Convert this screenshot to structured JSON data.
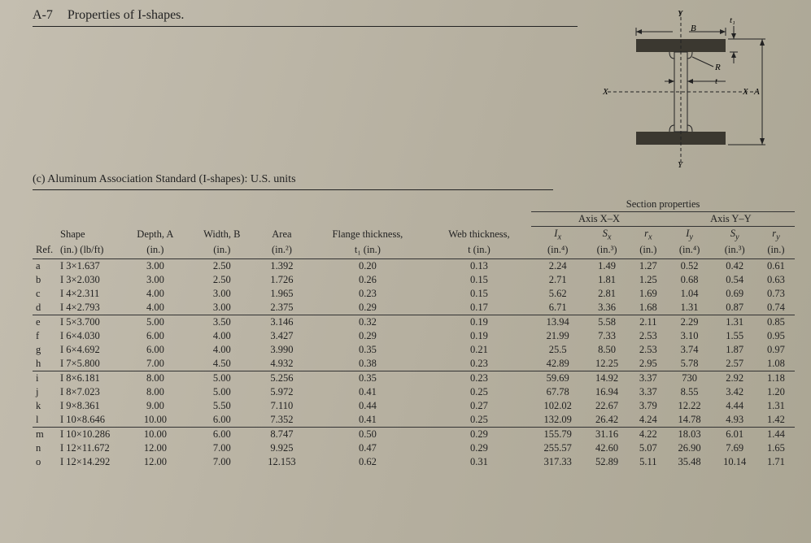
{
  "title": {
    "num": "A-7",
    "text": "Properties of I-shapes."
  },
  "subcaption": "(c) Aluminum Association Standard (I-shapes): U.S. units",
  "diagram": {
    "labels": {
      "Y": "Y",
      "X": "X",
      "A": "A",
      "B": "B",
      "R": "R",
      "t": "t",
      "t1": "t₁"
    },
    "flange_color": "#3b3830",
    "line_color": "#222222"
  },
  "headers": {
    "section_props": "Section properties",
    "axis_xx": "Axis X–X",
    "axis_yy": "Axis Y–Y",
    "ref": "Ref.",
    "shape1": "Shape",
    "shape2": "(in.) (lb/ft)",
    "depth1": "Depth, A",
    "depth2": "(in.)",
    "width1": "Width, B",
    "width2": "(in.)",
    "area1": "Area",
    "area2": "(in.²)",
    "flange1": "Flange thickness,",
    "flange2": "t₁ (in.)",
    "web1": "Web thickness,",
    "web2": "t (in.)",
    "Ix1": "Iₓ",
    "Ix2": "(in.⁴)",
    "Sx1": "Sₓ",
    "Sx2": "(in.³)",
    "rx1": "rₓ",
    "rx2": "(in.)",
    "Iy1": "I_y",
    "Iy2": "(in.⁴)",
    "Sy1": "S_y",
    "Sy2": "(in.³)",
    "ry1": "r_y",
    "ry2": "(in.)"
  },
  "groups": [
    [
      {
        "ref": "a",
        "shape": "I 3×1.637",
        "A": "3.00",
        "B": "2.50",
        "area": "1.392",
        "t1": "0.20",
        "t": "0.13",
        "Ix": "2.24",
        "Sx": "1.49",
        "rx": "1.27",
        "Iy": "0.52",
        "Sy": "0.42",
        "ry": "0.61"
      },
      {
        "ref": "b",
        "shape": "I 3×2.030",
        "A": "3.00",
        "B": "2.50",
        "area": "1.726",
        "t1": "0.26",
        "t": "0.15",
        "Ix": "2.71",
        "Sx": "1.81",
        "rx": "1.25",
        "Iy": "0.68",
        "Sy": "0.54",
        "ry": "0.63"
      },
      {
        "ref": "c",
        "shape": "I 4×2.311",
        "A": "4.00",
        "B": "3.00",
        "area": "1.965",
        "t1": "0.23",
        "t": "0.15",
        "Ix": "5.62",
        "Sx": "2.81",
        "rx": "1.69",
        "Iy": "1.04",
        "Sy": "0.69",
        "ry": "0.73"
      },
      {
        "ref": "d",
        "shape": "I 4×2.793",
        "A": "4.00",
        "B": "3.00",
        "area": "2.375",
        "t1": "0.29",
        "t": "0.17",
        "Ix": "6.71",
        "Sx": "3.36",
        "rx": "1.68",
        "Iy": "1.31",
        "Sy": "0.87",
        "ry": "0.74"
      }
    ],
    [
      {
        "ref": "e",
        "shape": "I 5×3.700",
        "A": "5.00",
        "B": "3.50",
        "area": "3.146",
        "t1": "0.32",
        "t": "0.19",
        "Ix": "13.94",
        "Sx": "5.58",
        "rx": "2.11",
        "Iy": "2.29",
        "Sy": "1.31",
        "ry": "0.85"
      },
      {
        "ref": "f",
        "shape": "I 6×4.030",
        "A": "6.00",
        "B": "4.00",
        "area": "3.427",
        "t1": "0.29",
        "t": "0.19",
        "Ix": "21.99",
        "Sx": "7.33",
        "rx": "2.53",
        "Iy": "3.10",
        "Sy": "1.55",
        "ry": "0.95"
      },
      {
        "ref": "g",
        "shape": "I 6×4.692",
        "A": "6.00",
        "B": "4.00",
        "area": "3.990",
        "t1": "0.35",
        "t": "0.21",
        "Ix": "25.5",
        "Sx": "8.50",
        "rx": "2.53",
        "Iy": "3.74",
        "Sy": "1.87",
        "ry": "0.97"
      },
      {
        "ref": "h",
        "shape": "I 7×5.800",
        "A": "7.00",
        "B": "4.50",
        "area": "4.932",
        "t1": "0.38",
        "t": "0.23",
        "Ix": "42.89",
        "Sx": "12.25",
        "rx": "2.95",
        "Iy": "5.78",
        "Sy": "2.57",
        "ry": "1.08"
      }
    ],
    [
      {
        "ref": "i",
        "shape": "I 8×6.181",
        "A": "8.00",
        "B": "5.00",
        "area": "5.256",
        "t1": "0.35",
        "t": "0.23",
        "Ix": "59.69",
        "Sx": "14.92",
        "rx": "3.37",
        "Iy": "730",
        "Sy": "2.92",
        "ry": "1.18"
      },
      {
        "ref": "j",
        "shape": "I 8×7.023",
        "A": "8.00",
        "B": "5.00",
        "area": "5.972",
        "t1": "0.41",
        "t": "0.25",
        "Ix": "67.78",
        "Sx": "16.94",
        "rx": "3.37",
        "Iy": "8.55",
        "Sy": "3.42",
        "ry": "1.20"
      },
      {
        "ref": "k",
        "shape": "I 9×8.361",
        "A": "9.00",
        "B": "5.50",
        "area": "7.110",
        "t1": "0.44",
        "t": "0.27",
        "Ix": "102.02",
        "Sx": "22.67",
        "rx": "3.79",
        "Iy": "12.22",
        "Sy": "4.44",
        "ry": "1.31"
      },
      {
        "ref": "l",
        "shape": "I 10×8.646",
        "A": "10.00",
        "B": "6.00",
        "area": "7.352",
        "t1": "0.41",
        "t": "0.25",
        "Ix": "132.09",
        "Sx": "26.42",
        "rx": "4.24",
        "Iy": "14.78",
        "Sy": "4.93",
        "ry": "1.42"
      }
    ],
    [
      {
        "ref": "m",
        "shape": "I 10×10.286",
        "A": "10.00",
        "B": "6.00",
        "area": "8.747",
        "t1": "0.50",
        "t": "0.29",
        "Ix": "155.79",
        "Sx": "31.16",
        "rx": "4.22",
        "Iy": "18.03",
        "Sy": "6.01",
        "ry": "1.44"
      },
      {
        "ref": "n",
        "shape": "I 12×11.672",
        "A": "12.00",
        "B": "7.00",
        "area": "9.925",
        "t1": "0.47",
        "t": "0.29",
        "Ix": "255.57",
        "Sx": "42.60",
        "rx": "5.07",
        "Iy": "26.90",
        "Sy": "7.69",
        "ry": "1.65"
      },
      {
        "ref": "o",
        "shape": "I 12×14.292",
        "A": "12.00",
        "B": "7.00",
        "area": "12.153",
        "t1": "0.62",
        "t": "0.31",
        "Ix": "317.33",
        "Sx": "52.89",
        "rx": "5.11",
        "Iy": "35.48",
        "Sy": "10.14",
        "ry": "1.71"
      }
    ]
  ],
  "style": {
    "font_family": "Times New Roman",
    "bg_color": "#b8b2a3",
    "text_color": "#222222",
    "rule_color": "#333333",
    "header_fontsize_pt": 12.5,
    "body_fontsize_pt": 12.5
  }
}
